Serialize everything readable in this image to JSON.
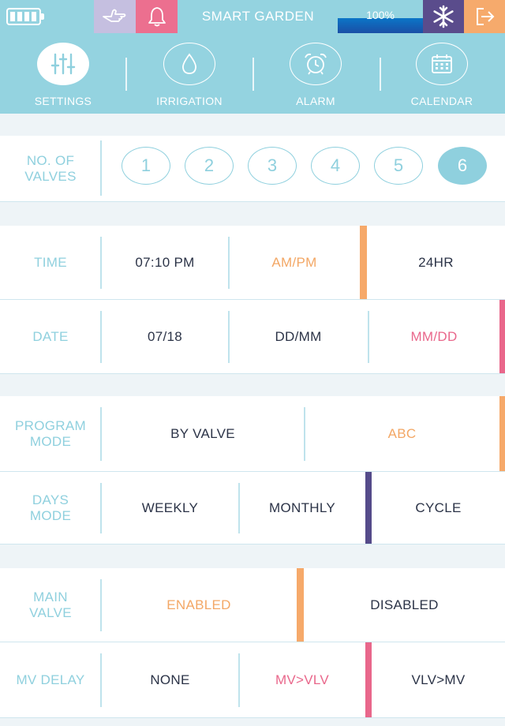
{
  "topbar": {
    "title": "SMART GARDEN",
    "level_percent": "100%",
    "level_value": 100,
    "icons": [
      "battery-icon",
      "hand-icon",
      "bell-icon",
      "snowflake-icon",
      "exit-icon"
    ],
    "colors": {
      "hand_bg": "#c5bfe0",
      "bell_bg": "#ec6f8f",
      "snow_bg": "#5a4c8c",
      "exit_bg": "#f6aa6c"
    }
  },
  "nav": {
    "items": [
      {
        "label": "SETTINGS",
        "icon": "sliders-icon",
        "active": true
      },
      {
        "label": "IRRIGATION",
        "icon": "water-drop-icon",
        "active": false
      },
      {
        "label": "ALARM",
        "icon": "alarm-clock-icon",
        "active": false
      },
      {
        "label": "CALENDAR",
        "icon": "calendar-icon",
        "active": false
      }
    ]
  },
  "valves": {
    "label": "NO. OF\nVALVES",
    "options": [
      "1",
      "2",
      "3",
      "4",
      "5",
      "6"
    ],
    "selected": "6"
  },
  "time": {
    "label": "TIME",
    "value": "07:10 PM",
    "opt1": "AM/PM",
    "opt2": "24HR"
  },
  "date": {
    "label": "DATE",
    "value": "07/18",
    "opt1": "DD/MM",
    "opt2": "MM/DD"
  },
  "program_mode": {
    "label": "PROGRAM\nMODE",
    "opt1": "BY VALVE",
    "opt2": "ABC"
  },
  "days_mode": {
    "label": "DAYS\nMODE",
    "opt1": "WEEKLY",
    "opt2": "MONTHLY",
    "opt3": "CYCLE"
  },
  "main_valve": {
    "label": "MAIN\nVALVE",
    "opt1": "ENABLED",
    "opt2": "DISABLED"
  },
  "mv_delay": {
    "label": "MV DELAY",
    "opt1": "NONE",
    "opt2": "MV>VLV",
    "opt3": "VLV>MV"
  },
  "accent_colors": {
    "orange": "#f6a96a",
    "pink": "#e9678b",
    "purple": "#554b8a",
    "teal": "#8fd0de"
  }
}
